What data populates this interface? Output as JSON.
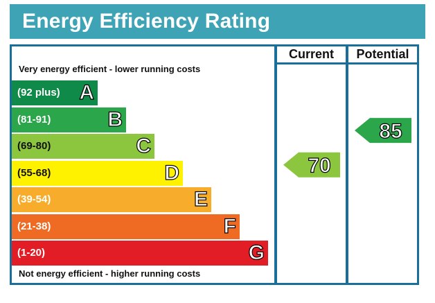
{
  "title": "Energy Efficiency Rating",
  "columns": {
    "current": "Current",
    "potential": "Potential"
  },
  "top_note": "Very energy efficient - lower running costs",
  "bottom_note": "Not energy efficient - higher running costs",
  "colors": {
    "title_bar": "#3fa3b6",
    "frame": "#1a6f9a"
  },
  "chart_data": {
    "type": "bar",
    "bands": [
      {
        "letter": "A",
        "range": "(92 plus)",
        "min": 92,
        "max": 100,
        "color": "#0f8a48"
      },
      {
        "letter": "B",
        "range": "(81-91)",
        "min": 81,
        "max": 91,
        "color": "#2ba64a"
      },
      {
        "letter": "C",
        "range": "(69-80)",
        "min": 69,
        "max": 80,
        "color": "#8cc63f"
      },
      {
        "letter": "D",
        "range": "(55-68)",
        "min": 55,
        "max": 68,
        "color": "#fff200"
      },
      {
        "letter": "E",
        "range": "(39-54)",
        "min": 39,
        "max": 54,
        "color": "#f7ad2b"
      },
      {
        "letter": "F",
        "range": "(21-38)",
        "min": 21,
        "max": 38,
        "color": "#ef6a23"
      },
      {
        "letter": "G",
        "range": "(1-20)",
        "min": 1,
        "max": 20,
        "color": "#e31d25"
      }
    ],
    "current": 70,
    "potential": 85
  }
}
